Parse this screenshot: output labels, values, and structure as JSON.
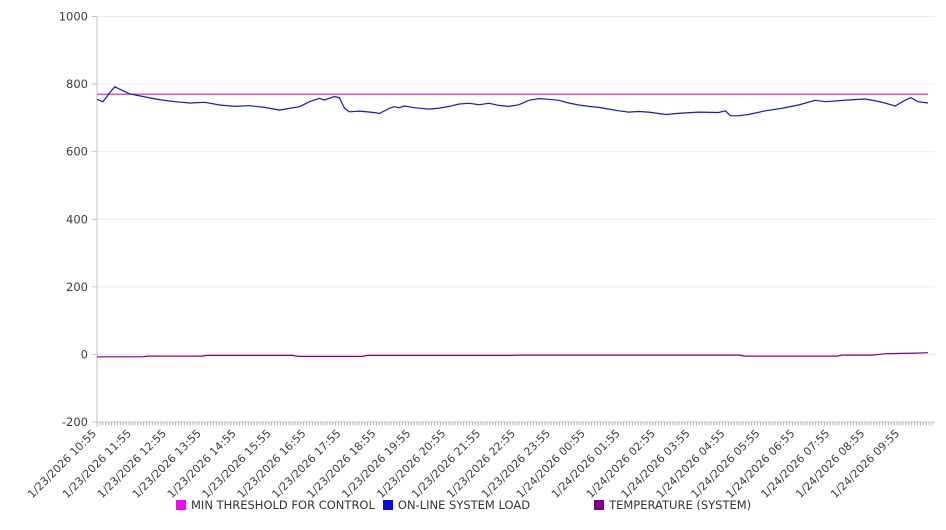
{
  "chart_data": {
    "type": "line",
    "title": "",
    "x_axis": {
      "tick_labels": [
        "1/23/2026 10:55",
        "1/23/2026 11:55",
        "1/23/2026 12:55",
        "1/23/2026 13:55",
        "1/23/2026 14:55",
        "1/23/2026 15:55",
        "1/23/2026 16:55",
        "1/23/2026 17:55",
        "1/23/2026 18:55",
        "1/23/2026 19:55",
        "1/23/2026 20:55",
        "1/23/2026 21:55",
        "1/23/2026 22:55",
        "1/23/2026 23:55",
        "1/24/2026 00:55",
        "1/24/2026 01:55",
        "1/24/2026 02:55",
        "1/24/2026 03:55",
        "1/24/2026 04:55",
        "1/24/2026 05:55",
        "1/24/2026 06:55",
        "1/24/2026 07:55",
        "1/24/2026 08:55",
        "1/24/2026 09:55"
      ],
      "hours_range": [
        0,
        24
      ],
      "minor_ticks_per_hour": 12
    },
    "y_axis": {
      "ticks": [
        -200,
        0,
        200,
        400,
        600,
        800,
        1000
      ],
      "range": [
        -200,
        1000
      ]
    },
    "grid": "horizontal",
    "legend_position": "bottom",
    "colors": {
      "axis": "#c3c3c3",
      "gridline": "#ececec",
      "minor_tick": "#b3b3b3",
      "tick_text": "#3d3d3d"
    },
    "series": [
      {
        "name": "MIN THRESHOLD FOR CONTROL",
        "color": "#e012cb",
        "swatch_color": "#fb00fb",
        "points": [
          [
            0,
            770
          ],
          [
            23.8,
            770
          ]
        ]
      },
      {
        "name": "ON-LINE SYSTEM LOAD",
        "color": "#1616d2",
        "swatch_color": "#0b0bf2",
        "points": [
          [
            0,
            755
          ],
          [
            0.17,
            748
          ],
          [
            0.37,
            775
          ],
          [
            0.51,
            792
          ],
          [
            0.71,
            782
          ],
          [
            0.94,
            771
          ],
          [
            1.23,
            765
          ],
          [
            1.51,
            759
          ],
          [
            1.86,
            753
          ],
          [
            2.23,
            748
          ],
          [
            2.66,
            744
          ],
          [
            3.09,
            746
          ],
          [
            3.51,
            738
          ],
          [
            3.94,
            734
          ],
          [
            4.37,
            736
          ],
          [
            4.8,
            731
          ],
          [
            5.23,
            723
          ],
          [
            5.51,
            728
          ],
          [
            5.8,
            733
          ],
          [
            6.09,
            748
          ],
          [
            6.37,
            758
          ],
          [
            6.51,
            753
          ],
          [
            6.8,
            763
          ],
          [
            6.94,
            760
          ],
          [
            7.09,
            728
          ],
          [
            7.23,
            718
          ],
          [
            7.51,
            720
          ],
          [
            7.94,
            716
          ],
          [
            8.09,
            713
          ],
          [
            8.37,
            728
          ],
          [
            8.51,
            733
          ],
          [
            8.66,
            730
          ],
          [
            8.8,
            735
          ],
          [
            9.09,
            730
          ],
          [
            9.51,
            726
          ],
          [
            9.8,
            729
          ],
          [
            10.09,
            734
          ],
          [
            10.37,
            741
          ],
          [
            10.66,
            743
          ],
          [
            10.94,
            739
          ],
          [
            11.23,
            743
          ],
          [
            11.51,
            737
          ],
          [
            11.8,
            734
          ],
          [
            12.09,
            739
          ],
          [
            12.37,
            752
          ],
          [
            12.66,
            757
          ],
          [
            12.94,
            755
          ],
          [
            13.23,
            752
          ],
          [
            13.51,
            744
          ],
          [
            13.8,
            738
          ],
          [
            14.09,
            734
          ],
          [
            14.37,
            731
          ],
          [
            14.66,
            726
          ],
          [
            14.94,
            721
          ],
          [
            15.23,
            717
          ],
          [
            15.51,
            719
          ],
          [
            15.8,
            717
          ],
          [
            16.29,
            710
          ],
          [
            16.74,
            714
          ],
          [
            17.23,
            717
          ],
          [
            17.8,
            716
          ],
          [
            18,
            721
          ],
          [
            18.14,
            706
          ],
          [
            18.37,
            706
          ],
          [
            18.66,
            710
          ],
          [
            19.14,
            721
          ],
          [
            19.6,
            728
          ],
          [
            20.09,
            738
          ],
          [
            20.57,
            752
          ],
          [
            20.86,
            748
          ],
          [
            21.51,
            753
          ],
          [
            22,
            756
          ],
          [
            22.46,
            747
          ],
          [
            22.86,
            735
          ],
          [
            23.14,
            752
          ],
          [
            23.31,
            760
          ],
          [
            23.51,
            748
          ],
          [
            23.8,
            744
          ]
        ]
      },
      {
        "name": "TEMPERATURE (SYSTEM)",
        "color": "#800080",
        "swatch_color": "#800080",
        "points": [
          [
            0,
            -7
          ],
          [
            1.3,
            -7
          ],
          [
            1.45,
            -5
          ],
          [
            3,
            -5
          ],
          [
            3.15,
            -3
          ],
          [
            5.6,
            -3
          ],
          [
            5.75,
            -6
          ],
          [
            7.6,
            -6
          ],
          [
            7.75,
            -3
          ],
          [
            11.9,
            -3
          ],
          [
            12.05,
            -2
          ],
          [
            18.4,
            -2
          ],
          [
            18.55,
            -5
          ],
          [
            21.2,
            -5
          ],
          [
            21.35,
            -2
          ],
          [
            22.2,
            -2
          ],
          [
            22.6,
            2
          ],
          [
            23.1,
            3
          ],
          [
            23.5,
            4
          ],
          [
            23.8,
            5
          ]
        ]
      }
    ]
  }
}
